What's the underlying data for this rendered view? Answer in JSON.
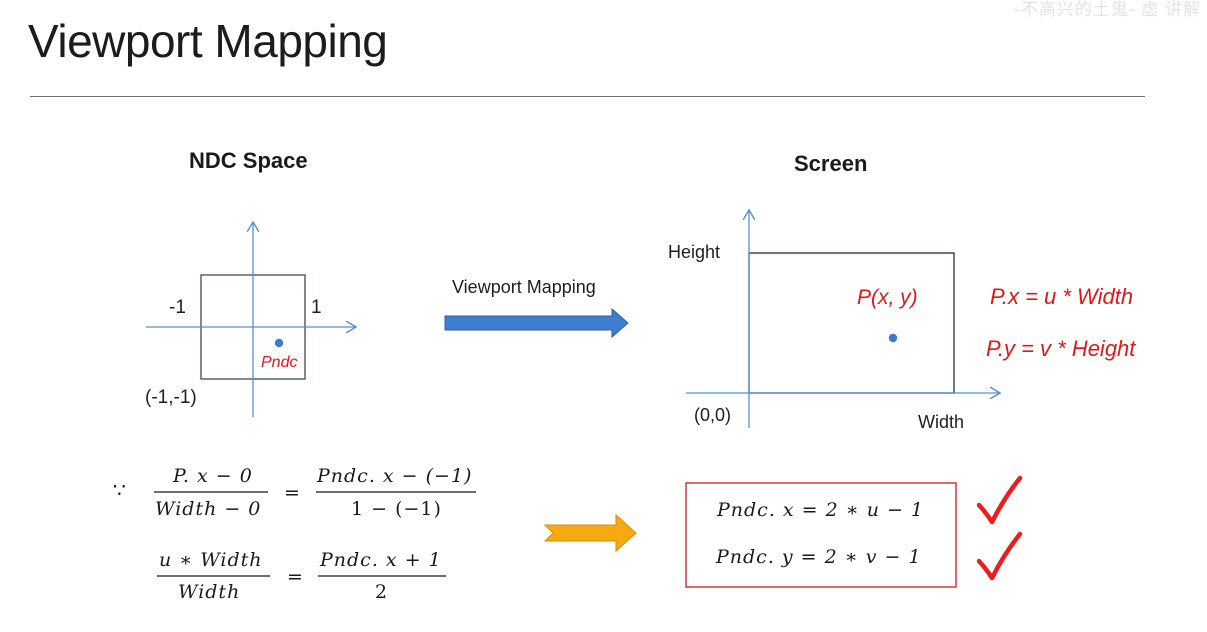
{
  "slide": {
    "title": "Viewport Mapping",
    "watermark": "-不高兴的土鬼-  虚   讲解"
  },
  "ndc": {
    "heading": "NDC Space",
    "label_neg1": "-1",
    "label_pos1": "1",
    "label_corner": "(-1,-1)",
    "point_label": "Pndc"
  },
  "mapping_arrow": {
    "label": "Viewport Mapping",
    "color": "#3f7fcf"
  },
  "screen": {
    "heading": "Screen",
    "label_height": "Height",
    "label_width": "Width",
    "label_origin": "(0,0)",
    "point_label": "P(x, y)",
    "formula_x": "P.x = u * Width",
    "formula_y": "P.y = v * Height"
  },
  "derivation": {
    "because_symbol": "∵",
    "eq1": {
      "lhs_num": "P. x − 0",
      "lhs_den": "Width − 0",
      "rhs_num": "Pndc. x − (−1)",
      "rhs_den": "1 − (−1)"
    },
    "eq2": {
      "lhs_num": "u ∗ Width",
      "lhs_den": "Width",
      "rhs_num": "Pndc. x + 1",
      "rhs_den": "2"
    },
    "equals": "="
  },
  "result": {
    "line1": "Pndc. x =  2 ∗ u − 1",
    "line2": "Pndc. y =  2 ∗ v − 1",
    "border_color": "#d02a2a",
    "check_color": "#ee1c1c"
  },
  "colors": {
    "red_text": "#e01818",
    "axis": "#5a8fd0",
    "point": "#3a7ec8",
    "orange_arrow": "#f7a912"
  }
}
